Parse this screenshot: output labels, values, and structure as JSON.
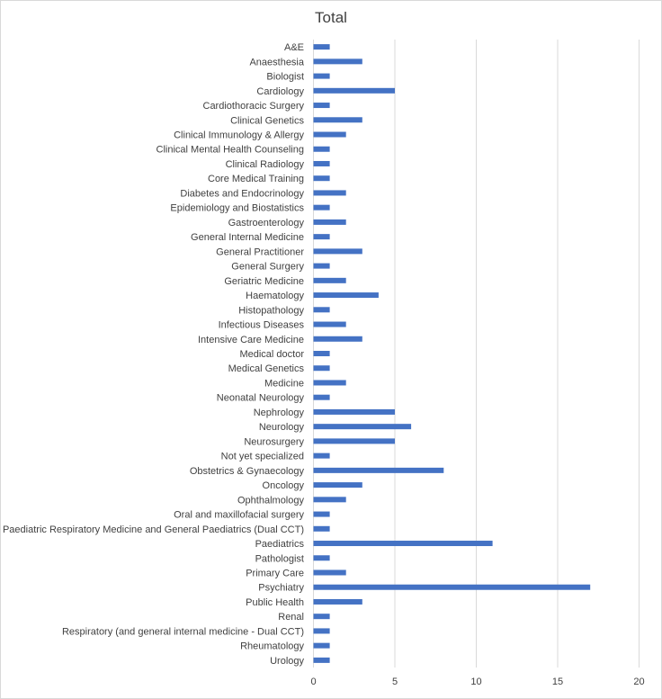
{
  "chart_data": {
    "type": "bar",
    "orientation": "horizontal",
    "title": "Total",
    "xlabel": "",
    "ylabel": "",
    "xlim": [
      0,
      20
    ],
    "xticks": [
      "0",
      "5",
      "10",
      "15",
      "20"
    ],
    "grid": true,
    "legend": "none",
    "bar_color": "#4472c4",
    "grid_color": "#d9d9d9",
    "categories": [
      "A&E",
      "Anaesthesia",
      "Biologist",
      "Cardiology",
      "Cardiothoracic Surgery",
      "Clinical Genetics",
      "Clinical Immunology & Allergy",
      "Clinical Mental Health Counseling",
      "Clinical Radiology",
      "Core Medical Training",
      "Diabetes and Endocrinology",
      "Epidemiology and Biostatistics",
      "Gastroenterology",
      "General Internal Medicine",
      "General Practitioner",
      "General Surgery",
      "Geriatric Medicine",
      "Haematology",
      "Histopathology",
      "Infectious Diseases",
      "Intensive Care Medicine",
      "Medical doctor",
      "Medical Genetics",
      "Medicine",
      "Neonatal Neurology",
      "Nephrology",
      "Neurology",
      "Neurosurgery",
      "Not yet specialized",
      "Obstetrics & Gynaecology",
      "Oncology",
      "Ophthalmology",
      "Oral and maxillofacial surgery",
      "Paediatric Respiratory Medicine and General Paediatrics (Dual CCT)",
      "Paediatrics",
      "Pathologist",
      "Primary Care",
      "Psychiatry",
      "Public Health",
      "Renal",
      "Respiratory (and general internal medicine - Dual CCT)",
      "Rheumatology",
      "Urology"
    ],
    "values": [
      1,
      3,
      1,
      5,
      1,
      3,
      2,
      1,
      1,
      1,
      2,
      1,
      2,
      1,
      3,
      1,
      2,
      4,
      1,
      2,
      3,
      1,
      1,
      2,
      1,
      5,
      6,
      5,
      1,
      8,
      3,
      2,
      1,
      1,
      11,
      1,
      2,
      17,
      3,
      1,
      1,
      1,
      1
    ]
  }
}
